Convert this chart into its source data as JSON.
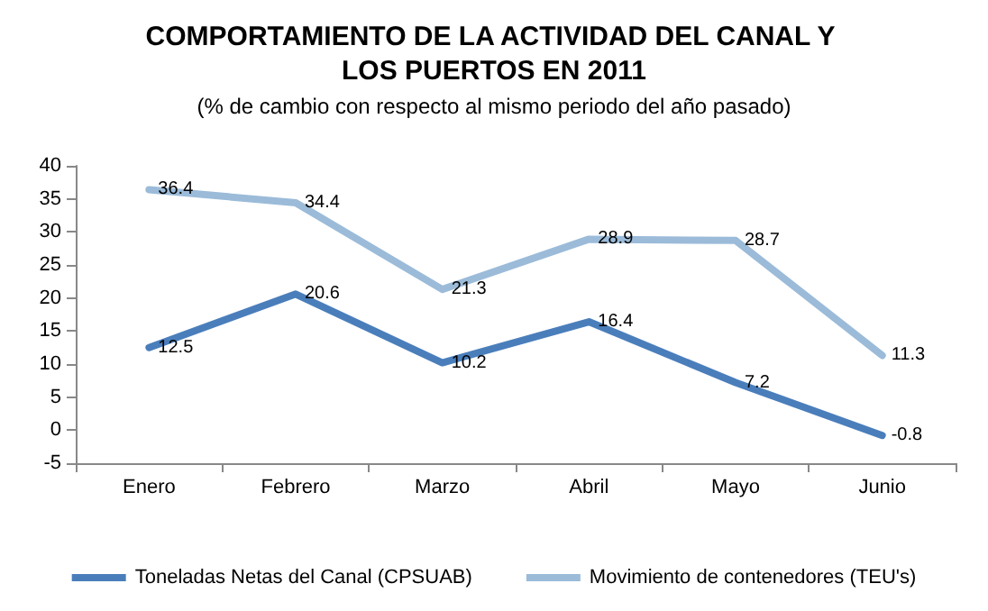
{
  "chart_data": {
    "type": "line",
    "title": "COMPORTAMIENTO DE LA ACTIVIDAD DEL CANAL Y LOS PUERTOS EN 2011",
    "subtitle": "(% de cambio con respecto al mismo periodo del año pasado)",
    "categories": [
      "Enero",
      "Febrero",
      "Marzo",
      "Abril",
      "Mayo",
      "Junio"
    ],
    "series": [
      {
        "name": "Toneladas Netas del Canal (CPSUAB)",
        "color": "#4a7ebb",
        "values": [
          12.5,
          20.6,
          10.2,
          16.4,
          7.2,
          -0.8
        ]
      },
      {
        "name": "Movimiento de contenedores (TEU's)",
        "color": "#9bbbd9",
        "values": [
          36.4,
          34.4,
          21.3,
          28.9,
          28.7,
          11.3
        ]
      }
    ],
    "ylim": [
      -5,
      40
    ],
    "yticks": [
      -5,
      0,
      5,
      10,
      15,
      20,
      25,
      30,
      35,
      40
    ],
    "grid": false,
    "legend": "bottom",
    "marker": "none",
    "line_style": "solid",
    "data_labels": true
  }
}
